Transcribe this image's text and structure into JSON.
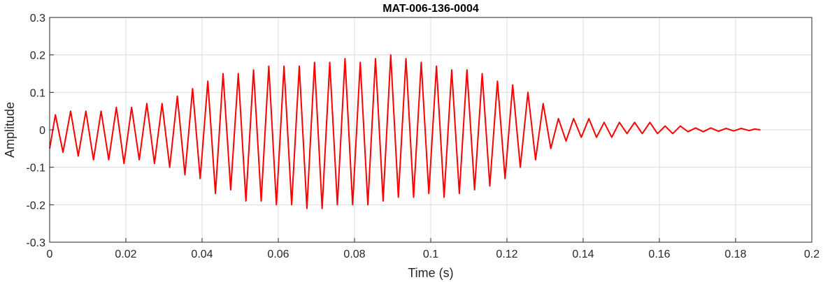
{
  "chart_data": {
    "type": "line",
    "title": "MAT-006-136-0004",
    "xlabel": "Time (s)",
    "ylabel": "Amplitude",
    "xlim": [
      0,
      0.2
    ],
    "ylim": [
      -0.3,
      0.3
    ],
    "xticks": [
      0,
      0.02,
      0.04,
      0.06,
      0.08,
      0.1,
      0.12,
      0.14,
      0.16,
      0.18,
      0.2
    ],
    "xtick_labels": [
      "0",
      "0.02",
      "0.04",
      "0.06",
      "0.08",
      "0.1",
      "0.12",
      "0.14",
      "0.16",
      "0.18",
      "0.2"
    ],
    "yticks": [
      -0.3,
      -0.2,
      -0.1,
      0,
      0.1,
      0.2,
      0.3
    ],
    "ytick_labels": [
      "-0.3",
      "-0.2",
      "-0.1",
      "0",
      "0.1",
      "0.2",
      "0.3"
    ],
    "grid": true,
    "colors": {
      "series": "#ff0000",
      "grid": "#dcdcdc",
      "axis": "#262626"
    },
    "series": [
      {
        "x": [
          0,
          0.0015,
          0.0035,
          0.0055,
          0.0075,
          0.0095,
          0.0115,
          0.0135,
          0.0155,
          0.0175,
          0.0195,
          0.0215,
          0.0235,
          0.0255,
          0.0275,
          0.0295,
          0.0315,
          0.0335,
          0.0355,
          0.0375,
          0.0395,
          0.0415,
          0.0435,
          0.0455,
          0.0475,
          0.0495,
          0.0515,
          0.0535,
          0.0555,
          0.0575,
          0.0595,
          0.0615,
          0.0635,
          0.0655,
          0.0675,
          0.0695,
          0.0715,
          0.0735,
          0.0755,
          0.0775,
          0.0795,
          0.0815,
          0.0835,
          0.0855,
          0.0875,
          0.0895,
          0.0915,
          0.0935,
          0.0955,
          0.0975,
          0.0995,
          0.1015,
          0.1035,
          0.1055,
          0.1075,
          0.1095,
          0.1115,
          0.1135,
          0.1155,
          0.1175,
          0.1195,
          0.1215,
          0.1235,
          0.1255,
          0.1275,
          0.1295,
          0.1315,
          0.1335,
          0.1355,
          0.1375,
          0.1395,
          0.1415,
          0.1435,
          0.1455,
          0.1475,
          0.1495,
          0.1515,
          0.1535,
          0.1555,
          0.1575,
          0.1595,
          0.1615,
          0.1635,
          0.1655,
          0.1675,
          0.1695,
          0.1715,
          0.1735,
          0.1755,
          0.1775,
          0.1795,
          0.1815,
          0.1835,
          0.185,
          0.1865
        ],
        "y": [
          -0.05,
          0.04,
          -0.06,
          0.05,
          -0.07,
          0.05,
          -0.08,
          0.05,
          -0.08,
          0.06,
          -0.09,
          0.06,
          -0.08,
          0.07,
          -0.09,
          0.07,
          -0.1,
          0.09,
          -0.12,
          0.11,
          -0.13,
          0.13,
          -0.17,
          0.15,
          -0.16,
          0.15,
          -0.19,
          0.16,
          -0.19,
          0.17,
          -0.2,
          0.17,
          -0.2,
          0.17,
          -0.21,
          0.18,
          -0.21,
          0.18,
          -0.2,
          0.19,
          -0.2,
          0.18,
          -0.2,
          0.19,
          -0.19,
          0.2,
          -0.18,
          0.19,
          -0.18,
          0.18,
          -0.17,
          0.17,
          -0.18,
          0.16,
          -0.17,
          0.16,
          -0.16,
          0.15,
          -0.15,
          0.13,
          -0.13,
          0.12,
          -0.1,
          0.1,
          -0.08,
          0.07,
          -0.05,
          0.03,
          -0.03,
          0.03,
          -0.02,
          0.03,
          -0.02,
          0.02,
          -0.02,
          0.02,
          -0.01,
          0.02,
          -0.01,
          0.02,
          -0.01,
          0.01,
          -0.01,
          0.01,
          -0.005,
          0.005,
          -0.005,
          0.005,
          -0.004,
          0.004,
          -0.003,
          0.004,
          -0.002,
          0.002,
          0.0
        ]
      }
    ]
  }
}
